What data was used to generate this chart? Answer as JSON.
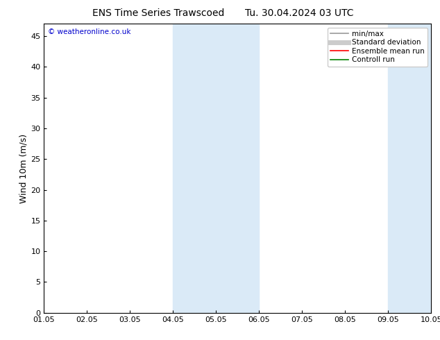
{
  "title_left": "ENS Time Series Trawscoed",
  "title_right": "Tu. 30.04.2024 03 UTC",
  "ylabel": "Wind 10m (m/s)",
  "watermark": "© weatheronline.co.uk",
  "watermark_color": "#0000cc",
  "xlabel_ticks": [
    "01.05",
    "02.05",
    "03.05",
    "04.05",
    "05.05",
    "06.05",
    "07.05",
    "08.05",
    "09.05",
    "10.05"
  ],
  "ylim": [
    0,
    47
  ],
  "yticks": [
    0,
    5,
    10,
    15,
    20,
    25,
    30,
    35,
    40,
    45
  ],
  "shaded_bands": [
    {
      "xstart": 3,
      "xend": 5,
      "color": "#daeaf7"
    },
    {
      "xstart": 8,
      "xend": 10,
      "color": "#daeaf7"
    }
  ],
  "legend_items": [
    {
      "label": "min/max",
      "color": "#999999",
      "lw": 1.2,
      "style": "line"
    },
    {
      "label": "Standard deviation",
      "color": "#cccccc",
      "lw": 5,
      "style": "line"
    },
    {
      "label": "Ensemble mean run",
      "color": "#ff0000",
      "lw": 1.2,
      "style": "line"
    },
    {
      "label": "Controll run",
      "color": "#008000",
      "lw": 1.2,
      "style": "line"
    }
  ],
  "bg_color": "#ffffff",
  "plot_bg_color": "#ffffff",
  "tick_label_fontsize": 8,
  "axis_label_fontsize": 9,
  "title_fontsize": 10
}
